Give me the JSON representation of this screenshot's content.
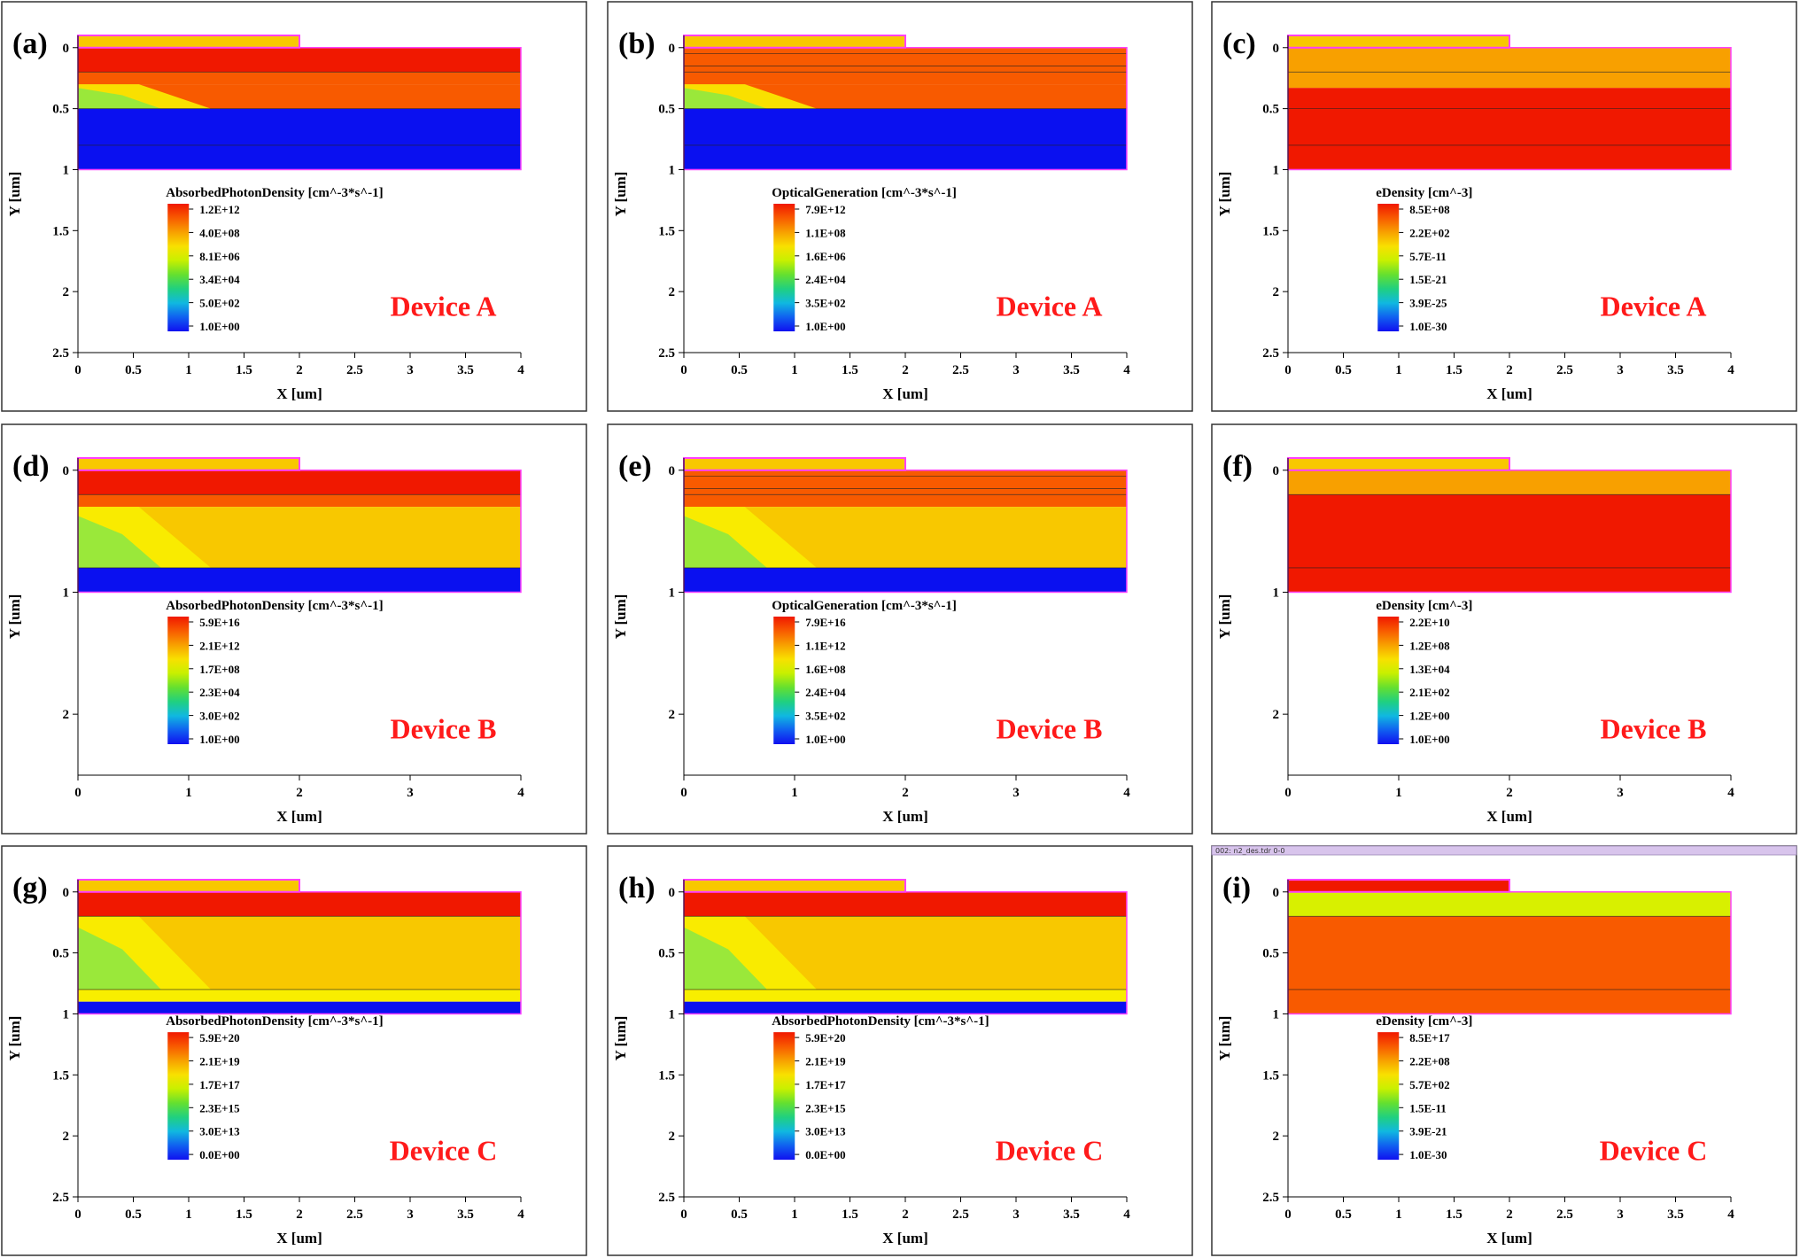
{
  "colors": {
    "red": "#f01800",
    "orange_red": "#f85a00",
    "orange": "#f8a000",
    "gold": "#f8c800",
    "yellow": "#f8ee00",
    "yellow_green": "#d8f000",
    "light_green": "#9ae83a",
    "blue": "#0a10f0",
    "magenta": "#ff40ff",
    "label_red": "#ff1a1a",
    "titlebar": "#d8c4ec"
  },
  "scale_colors": [
    "#f01800",
    "#f85a00",
    "#f8a000",
    "#f8e000",
    "#c8f000",
    "#64e030",
    "#20d080",
    "#10b8e0",
    "#1060f0",
    "#1010f0"
  ],
  "chart_data": [
    {
      "id": "a",
      "type": "heatmap",
      "panel_label": "(a)",
      "device_label": "Device A",
      "xlabel": "X [um]",
      "ylabel": "Y [um]",
      "x_ticks": [
        "0",
        "0.5",
        "1",
        "1.5",
        "2",
        "2.5",
        "3",
        "3.5",
        "4"
      ],
      "y_ticks": [
        "0",
        "0.5",
        "1",
        "1.5",
        "2",
        "2.5"
      ],
      "xlim": [
        0,
        4
      ],
      "ylim": [
        2.5,
        -0.1
      ],
      "cbar_top": 1.28,
      "colorbar_title": "AbsorbedPhotonDensity [cm^-3*s^-1]",
      "colorbar_ticks": [
        "1.2E+12",
        "4.0E+08",
        "8.1E+06",
        "3.4E+04",
        "5.0E+02",
        "1.0E+00"
      ],
      "layers": [
        {
          "y0": 0,
          "y1": 0.2,
          "color": "red"
        },
        {
          "y0": 0.2,
          "y1": 0.3,
          "color": "orange_red"
        },
        {
          "y0": 0.3,
          "y1": 0.5,
          "color": "orange_red",
          "grad_left": "light_green"
        },
        {
          "y0": 0.5,
          "y1": 1.0,
          "color": "blue"
        }
      ],
      "interfaces": [
        0.2,
        0.5,
        0.8
      ],
      "electrode_color": "gold"
    },
    {
      "id": "b",
      "type": "heatmap",
      "panel_label": "(b)",
      "device_label": "Device A",
      "xlabel": "X [um]",
      "ylabel": "Y [um]",
      "x_ticks": [
        "0",
        "0.5",
        "1",
        "1.5",
        "2",
        "2.5",
        "3",
        "3.5",
        "4"
      ],
      "y_ticks": [
        "0",
        "0.5",
        "1",
        "1.5",
        "2",
        "2.5"
      ],
      "xlim": [
        0,
        4
      ],
      "ylim": [
        2.5,
        -0.1
      ],
      "cbar_top": 1.28,
      "colorbar_title": "OpticalGeneration [cm^-3*s^-1]",
      "colorbar_ticks": [
        "7.9E+12",
        "1.1E+08",
        "1.6E+06",
        "2.4E+04",
        "3.5E+02",
        "1.0E+00"
      ],
      "layers": [
        {
          "y0": 0,
          "y1": 0.2,
          "color": "orange_red"
        },
        {
          "y0": 0.2,
          "y1": 0.3,
          "color": "orange_red"
        },
        {
          "y0": 0.3,
          "y1": 0.5,
          "color": "orange_red",
          "grad_left": "light_green"
        },
        {
          "y0": 0.5,
          "y1": 1.0,
          "color": "blue"
        }
      ],
      "interfaces": [
        0.05,
        0.15,
        0.2,
        0.5,
        0.8
      ],
      "electrode_color": "gold"
    },
    {
      "id": "c",
      "type": "heatmap",
      "panel_label": "(c)",
      "device_label": "Device A",
      "xlabel": "X [um]",
      "ylabel": "Y [um]",
      "x_ticks": [
        "0",
        "0.5",
        "1",
        "1.5",
        "2",
        "2.5",
        "3",
        "3.5",
        "4"
      ],
      "y_ticks": [
        "0",
        "0.5",
        "1",
        "1.5",
        "2",
        "2.5"
      ],
      "xlim": [
        0,
        4
      ],
      "ylim": [
        2.5,
        -0.1
      ],
      "cbar_top": 1.28,
      "colorbar_title": "eDensity [cm^-3]",
      "colorbar_ticks": [
        "8.5E+08",
        "2.2E+02",
        "5.7E-11",
        "1.5E-21",
        "3.9E-25",
        "1.0E-30"
      ],
      "layers": [
        {
          "y0": 0,
          "y1": 0.2,
          "color": "orange"
        },
        {
          "y0": 0.2,
          "y1": 0.33,
          "color": "orange"
        },
        {
          "y0": 0.33,
          "y1": 1.0,
          "color": "red"
        }
      ],
      "interfaces": [
        0.2,
        0.5,
        0.8
      ],
      "electrode_color": "gold"
    },
    {
      "id": "d",
      "type": "heatmap",
      "panel_label": "(d)",
      "device_label": "Device B",
      "xlabel": "X [um]",
      "ylabel": "Y [um]",
      "x_ticks": [
        "0",
        "1",
        "2",
        "3",
        "4"
      ],
      "y_ticks": [
        "0",
        "1",
        "2"
      ],
      "xlim": [
        0,
        4
      ],
      "ylim": [
        2.5,
        -0.1
      ],
      "cbar_top": 1.2,
      "colorbar_title": "AbsorbedPhotonDensity [cm^-3*s^-1]",
      "colorbar_ticks": [
        "5.9E+16",
        "2.1E+12",
        "1.7E+08",
        "2.3E+04",
        "3.0E+02",
        "1.0E+00"
      ],
      "layers": [
        {
          "y0": 0,
          "y1": 0.2,
          "color": "red"
        },
        {
          "y0": 0.2,
          "y1": 0.3,
          "color": "orange_red"
        },
        {
          "y0": 0.3,
          "y1": 0.8,
          "color": "gold",
          "grad_left": "light_green"
        },
        {
          "y0": 0.8,
          "y1": 1.0,
          "color": "blue"
        }
      ],
      "interfaces": [
        0.2,
        0.8
      ],
      "electrode_color": "gold"
    },
    {
      "id": "e",
      "type": "heatmap",
      "panel_label": "(e)",
      "device_label": "Device B",
      "xlabel": "X [um]",
      "ylabel": "Y [um]",
      "x_ticks": [
        "0",
        "1",
        "2",
        "3",
        "4"
      ],
      "y_ticks": [
        "0",
        "1",
        "2"
      ],
      "xlim": [
        0,
        4
      ],
      "ylim": [
        2.5,
        -0.1
      ],
      "cbar_top": 1.2,
      "colorbar_title": "OpticalGeneration [cm^-3*s^-1]",
      "colorbar_ticks": [
        "7.9E+16",
        "1.1E+12",
        "1.6E+08",
        "2.4E+04",
        "3.5E+02",
        "1.0E+00"
      ],
      "layers": [
        {
          "y0": 0,
          "y1": 0.2,
          "color": "orange_red"
        },
        {
          "y0": 0.2,
          "y1": 0.3,
          "color": "orange_red"
        },
        {
          "y0": 0.3,
          "y1": 0.8,
          "color": "gold",
          "grad_left": "light_green"
        },
        {
          "y0": 0.8,
          "y1": 1.0,
          "color": "blue"
        }
      ],
      "interfaces": [
        0.05,
        0.15,
        0.2,
        0.8
      ],
      "electrode_color": "gold"
    },
    {
      "id": "f",
      "type": "heatmap",
      "panel_label": "(f)",
      "device_label": "Device B",
      "xlabel": "X [um]",
      "ylabel": "Y [um]",
      "x_ticks": [
        "0",
        "1",
        "2",
        "3",
        "4"
      ],
      "y_ticks": [
        "0",
        "1",
        "2"
      ],
      "xlim": [
        0,
        4
      ],
      "ylim": [
        2.5,
        -0.1
      ],
      "cbar_top": 1.2,
      "colorbar_title": "eDensity [cm^-3]",
      "colorbar_ticks": [
        "2.2E+10",
        "1.2E+08",
        "1.3E+04",
        "2.1E+02",
        "1.2E+00",
        "1.0E+00"
      ],
      "layers": [
        {
          "y0": 0,
          "y1": 0.2,
          "color": "orange"
        },
        {
          "y0": 0.2,
          "y1": 1.0,
          "color": "red"
        }
      ],
      "interfaces": [
        0.2,
        0.8
      ],
      "electrode_color": "gold"
    },
    {
      "id": "g",
      "type": "heatmap",
      "panel_label": "(g)",
      "device_label": "Device C",
      "xlabel": "X [um]",
      "ylabel": "Y [um]",
      "x_ticks": [
        "0",
        "0.5",
        "1",
        "1.5",
        "2",
        "2.5",
        "3",
        "3.5",
        "4"
      ],
      "y_ticks": [
        "0",
        "0.5",
        "1",
        "1.5",
        "2",
        "2.5"
      ],
      "xlim": [
        0,
        4
      ],
      "ylim": [
        2.5,
        -0.1
      ],
      "cbar_top": 1.15,
      "colorbar_title": "AbsorbedPhotonDensity [cm^-3*s^-1]",
      "colorbar_ticks": [
        "5.9E+20",
        "2.1E+19",
        "1.7E+17",
        "2.3E+15",
        "3.0E+13",
        "0.0E+00"
      ],
      "layers": [
        {
          "y0": 0,
          "y1": 0.2,
          "color": "red"
        },
        {
          "y0": 0.2,
          "y1": 0.8,
          "color": "gold",
          "grad_left": "light_green"
        },
        {
          "y0": 0.8,
          "y1": 0.9,
          "color": "yellow"
        },
        {
          "y0": 0.9,
          "y1": 1.0,
          "color": "blue"
        }
      ],
      "interfaces": [
        0.2,
        0.8
      ],
      "electrode_color": "gold"
    },
    {
      "id": "h",
      "type": "heatmap",
      "panel_label": "(h)",
      "device_label": "Device C",
      "xlabel": "X [um]",
      "ylabel": "Y [um]",
      "x_ticks": [
        "0",
        "0.5",
        "1",
        "1.5",
        "2",
        "2.5",
        "3",
        "3.5",
        "4"
      ],
      "y_ticks": [
        "0",
        "0.5",
        "1",
        "1.5",
        "2",
        "2.5"
      ],
      "xlim": [
        0,
        4
      ],
      "ylim": [
        2.5,
        -0.1
      ],
      "cbar_top": 1.15,
      "colorbar_title": "AbsorbedPhotonDensity [cm^-3*s^-1]",
      "colorbar_ticks": [
        "5.9E+20",
        "2.1E+19",
        "1.7E+17",
        "2.3E+15",
        "3.0E+13",
        "0.0E+00"
      ],
      "layers": [
        {
          "y0": 0,
          "y1": 0.2,
          "color": "red"
        },
        {
          "y0": 0.2,
          "y1": 0.8,
          "color": "gold",
          "grad_left": "light_green"
        },
        {
          "y0": 0.8,
          "y1": 0.9,
          "color": "yellow"
        },
        {
          "y0": 0.9,
          "y1": 1.0,
          "color": "blue"
        }
      ],
      "interfaces": [
        0.2,
        0.8
      ],
      "electrode_color": "gold"
    },
    {
      "id": "i",
      "type": "heatmap",
      "panel_label": "(i)",
      "device_label": "Device C",
      "window_title": "002: n2_des.tdr 0-0",
      "xlabel": "X [um]",
      "ylabel": "Y [um]",
      "x_ticks": [
        "0",
        "0.5",
        "1",
        "1.5",
        "2",
        "2.5",
        "3",
        "3.5",
        "4"
      ],
      "y_ticks": [
        "0",
        "0.5",
        "1",
        "1.5",
        "2",
        "2.5"
      ],
      "xlim": [
        0,
        4
      ],
      "ylim": [
        2.5,
        -0.1
      ],
      "cbar_top": 1.15,
      "colorbar_title": "eDensity [cm^-3]",
      "colorbar_ticks": [
        "8.5E+17",
        "2.2E+08",
        "5.7E+02",
        "1.5E-11",
        "3.9E-21",
        "1.0E-30"
      ],
      "layers": [
        {
          "y0": 0,
          "y1": 0.2,
          "color": "yellow_green"
        },
        {
          "y0": 0.2,
          "y1": 1.0,
          "color": "orange_red"
        }
      ],
      "interfaces": [
        0.2,
        0.8
      ],
      "electrode_color": "red"
    }
  ]
}
